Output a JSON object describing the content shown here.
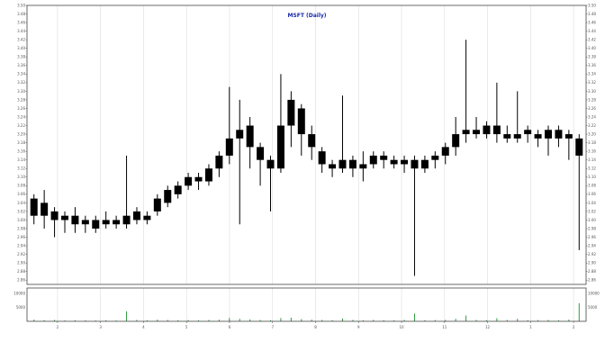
{
  "chart_data": {
    "type": "candlestick",
    "title": "MSFT (Daily)",
    "top_right_label": "",
    "grid": true,
    "colors": {
      "title": "#1b2ba8",
      "candle": "#000000",
      "grid": "#dcdcdc",
      "frame": "#444444",
      "volume": "#2e9a3e",
      "top_right": "#4a6bd8"
    },
    "price_axis": {
      "ylim": [
        2.85,
        3.5
      ],
      "left_ticks": [
        "3.50",
        "3.48",
        "3.46",
        "3.44",
        "3.42",
        "3.40",
        "3.38",
        "3.36",
        "3.34",
        "3.32",
        "3.30",
        "3.28",
        "3.26",
        "3.24",
        "3.22",
        "3.20",
        "3.18",
        "3.16",
        "3.14",
        "3.12",
        "3.10",
        "3.08",
        "3.06",
        "3.04",
        "3.02",
        "3.00",
        "2.98",
        "2.96",
        "2.94",
        "2.92",
        "2.90",
        "2.88",
        "2.86"
      ],
      "right_ticks": [
        "3.50",
        "3.48",
        "3.46",
        "3.44",
        "3.42",
        "3.40",
        "3.38",
        "3.36",
        "3.34",
        "3.32",
        "3.30",
        "3.28",
        "3.26",
        "3.24",
        "3.22",
        "3.20",
        "3.18",
        "3.16",
        "3.14",
        "3.12",
        "3.10",
        "3.08",
        "3.06",
        "3.04",
        "3.02",
        "3.00",
        "2.98",
        "2.96",
        "2.94",
        "2.92",
        "2.90",
        "2.88",
        "2.86"
      ]
    },
    "volume_axis": {
      "left_ticks": [
        "10000",
        "5000"
      ],
      "right_ticks": [
        "10000",
        "5000"
      ]
    },
    "x_axis": {
      "categories": [
        "2",
        "3",
        "4",
        "5",
        "6",
        "7",
        "8",
        "9",
        "10",
        "11",
        "12",
        "1",
        "2"
      ]
    },
    "series": [
      {
        "name": "",
        "bars": [
          {
            "x": 0,
            "open": 3.01,
            "close": 3.05,
            "high": 3.06,
            "low": 2.99
          },
          {
            "x": 1,
            "open": 3.04,
            "close": 3.01,
            "high": 3.07,
            "low": 2.98
          },
          {
            "x": 2,
            "open": 3.02,
            "close": 3.0,
            "high": 3.03,
            "low": 2.96
          },
          {
            "x": 3,
            "open": 3.0,
            "close": 3.01,
            "high": 3.02,
            "low": 2.97
          },
          {
            "x": 4,
            "open": 3.01,
            "close": 2.99,
            "high": 3.03,
            "low": 2.97
          },
          {
            "x": 5,
            "open": 2.99,
            "close": 3.0,
            "high": 3.01,
            "low": 2.97
          },
          {
            "x": 6,
            "open": 3.0,
            "close": 2.98,
            "high": 3.01,
            "low": 2.97
          },
          {
            "x": 7,
            "open": 2.99,
            "close": 3.0,
            "high": 3.02,
            "low": 2.98
          },
          {
            "x": 8,
            "open": 3.0,
            "close": 2.99,
            "high": 3.01,
            "low": 2.98
          },
          {
            "x": 9,
            "open": 2.99,
            "close": 3.01,
            "high": 3.15,
            "low": 2.98
          },
          {
            "x": 10,
            "open": 3.0,
            "close": 3.02,
            "high": 3.03,
            "low": 2.99
          },
          {
            "x": 11,
            "open": 3.01,
            "close": 3.0,
            "high": 3.02,
            "low": 2.99
          },
          {
            "x": 12,
            "open": 3.02,
            "close": 3.05,
            "high": 3.06,
            "low": 3.01
          },
          {
            "x": 13,
            "open": 3.04,
            "close": 3.07,
            "high": 3.08,
            "low": 3.03
          },
          {
            "x": 14,
            "open": 3.06,
            "close": 3.08,
            "high": 3.09,
            "low": 3.05
          },
          {
            "x": 15,
            "open": 3.08,
            "close": 3.1,
            "high": 3.11,
            "low": 3.07
          },
          {
            "x": 16,
            "open": 3.1,
            "close": 3.09,
            "high": 3.11,
            "low": 3.07
          },
          {
            "x": 17,
            "open": 3.09,
            "close": 3.12,
            "high": 3.13,
            "low": 3.08
          },
          {
            "x": 18,
            "open": 3.12,
            "close": 3.15,
            "high": 3.16,
            "low": 3.1
          },
          {
            "x": 19,
            "open": 3.15,
            "close": 3.19,
            "high": 3.31,
            "low": 3.13
          },
          {
            "x": 20,
            "open": 3.19,
            "close": 3.21,
            "high": 3.28,
            "low": 2.99
          },
          {
            "x": 21,
            "open": 3.22,
            "close": 3.17,
            "high": 3.24,
            "low": 3.12
          },
          {
            "x": 22,
            "open": 3.17,
            "close": 3.14,
            "high": 3.18,
            "low": 3.08
          },
          {
            "x": 23,
            "open": 3.14,
            "close": 3.12,
            "high": 3.15,
            "low": 3.02
          },
          {
            "x": 24,
            "open": 3.12,
            "close": 3.22,
            "high": 3.34,
            "low": 3.11
          },
          {
            "x": 25,
            "open": 3.22,
            "close": 3.28,
            "high": 3.3,
            "low": 3.17
          },
          {
            "x": 26,
            "open": 3.26,
            "close": 3.2,
            "high": 3.27,
            "low": 3.15
          },
          {
            "x": 27,
            "open": 3.2,
            "close": 3.17,
            "high": 3.22,
            "low": 3.14
          },
          {
            "x": 28,
            "open": 3.16,
            "close": 3.13,
            "high": 3.17,
            "low": 3.11
          },
          {
            "x": 29,
            "open": 3.13,
            "close": 3.12,
            "high": 3.14,
            "low": 3.1
          },
          {
            "x": 30,
            "open": 3.12,
            "close": 3.14,
            "high": 3.29,
            "low": 3.11
          },
          {
            "x": 31,
            "open": 3.14,
            "close": 3.12,
            "high": 3.15,
            "low": 3.1
          },
          {
            "x": 32,
            "open": 3.12,
            "close": 3.13,
            "high": 3.16,
            "low": 3.09
          },
          {
            "x": 33,
            "open": 3.13,
            "close": 3.15,
            "high": 3.16,
            "low": 3.12
          },
          {
            "x": 34,
            "open": 3.15,
            "close": 3.14,
            "high": 3.16,
            "low": 3.12
          },
          {
            "x": 35,
            "open": 3.14,
            "close": 3.13,
            "high": 3.15,
            "low": 3.12
          },
          {
            "x": 36,
            "open": 3.13,
            "close": 3.14,
            "high": 3.15,
            "low": 3.11
          },
          {
            "x": 37,
            "open": 3.14,
            "close": 3.12,
            "high": 3.15,
            "low": 2.87
          },
          {
            "x": 38,
            "open": 3.12,
            "close": 3.14,
            "high": 3.15,
            "low": 3.11
          },
          {
            "x": 39,
            "open": 3.14,
            "close": 3.15,
            "high": 3.16,
            "low": 3.12
          },
          {
            "x": 40,
            "open": 3.15,
            "close": 3.17,
            "high": 3.18,
            "low": 3.13
          },
          {
            "x": 41,
            "open": 3.17,
            "close": 3.2,
            "high": 3.24,
            "low": 3.15
          },
          {
            "x": 42,
            "open": 3.2,
            "close": 3.21,
            "high": 3.42,
            "low": 3.18
          },
          {
            "x": 43,
            "open": 3.21,
            "close": 3.2,
            "high": 3.24,
            "low": 3.19
          },
          {
            "x": 44,
            "open": 3.2,
            "close": 3.22,
            "high": 3.23,
            "low": 3.19
          },
          {
            "x": 45,
            "open": 3.22,
            "close": 3.2,
            "high": 3.32,
            "low": 3.18
          },
          {
            "x": 46,
            "open": 3.2,
            "close": 3.19,
            "high": 3.22,
            "low": 3.18
          },
          {
            "x": 47,
            "open": 3.19,
            "close": 3.2,
            "high": 3.3,
            "low": 3.18
          },
          {
            "x": 48,
            "open": 3.2,
            "close": 3.21,
            "high": 3.22,
            "low": 3.18
          },
          {
            "x": 49,
            "open": 3.2,
            "close": 3.19,
            "high": 3.21,
            "low": 3.17
          },
          {
            "x": 50,
            "open": 3.19,
            "close": 3.21,
            "high": 3.22,
            "low": 3.15
          },
          {
            "x": 51,
            "open": 3.21,
            "close": 3.19,
            "high": 3.22,
            "low": 3.17
          },
          {
            "x": 52,
            "open": 3.19,
            "close": 3.2,
            "high": 3.21,
            "low": 3.14
          },
          {
            "x": 53,
            "open": 3.19,
            "close": 3.15,
            "high": 3.2,
            "low": 2.93
          }
        ]
      }
    ],
    "volume_ylim": [
      0,
      12000
    ],
    "volume_values": [
      600,
      400,
      500,
      300,
      400,
      350,
      300,
      400,
      300,
      3600,
      500,
      400,
      600,
      500,
      400,
      450,
      400,
      500,
      600,
      1200,
      900,
      700,
      500,
      400,
      1200,
      1300,
      800,
      600,
      500,
      400,
      1000,
      500,
      400,
      500,
      400,
      350,
      500,
      2800,
      400,
      450,
      500,
      900,
      2100,
      500,
      400,
      1100,
      500,
      900,
      400,
      450,
      500,
      400,
      600,
      6500
    ]
  }
}
